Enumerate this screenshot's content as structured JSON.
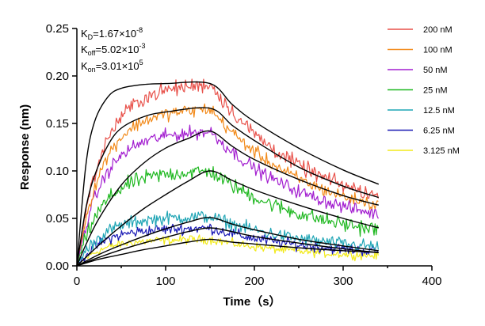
{
  "chart_data": {
    "type": "line",
    "title": "",
    "xlabel": "Time（s）",
    "ylabel": "Response (nm)",
    "xlim": [
      0,
      400
    ],
    "ylim": [
      0,
      0.25
    ],
    "xticks": [
      "0",
      "100",
      "200",
      "300",
      "400"
    ],
    "yticks": [
      "0.00",
      "0.05",
      "0.10",
      "0.15",
      "0.20",
      "0.25"
    ],
    "grid": false,
    "legend_position": "right",
    "association_end_s": 150,
    "end_time_s": 340,
    "kinetics": {
      "kd_prefix": "K",
      "kd_sub": "D",
      "kd_value": "=1.67×10",
      "kd_exp": "-8",
      "koff_prefix": "K",
      "koff_sub": "off",
      "koff_value": "=5.02×10",
      "koff_exp": "-3",
      "kon_prefix": "K",
      "kon_sub": "on",
      "kon_value": "=3.01×10",
      "kon_exp": "5"
    },
    "fit_color": "#000000",
    "series": [
      {
        "name": "200 nM",
        "color": "#e8514a",
        "plateau": 0.192,
        "noise": 0.007,
        "fit": [
          [
            0,
            0
          ],
          [
            10,
            0.105
          ],
          [
            20,
            0.152
          ],
          [
            35,
            0.178
          ],
          [
            50,
            0.187
          ],
          [
            75,
            0.191
          ],
          [
            100,
            0.192
          ],
          [
            150,
            0.192
          ],
          [
            175,
            0.17
          ],
          [
            200,
            0.152
          ],
          [
            250,
            0.124
          ],
          [
            300,
            0.101
          ],
          [
            340,
            0.086
          ]
        ]
      },
      {
        "name": "100 nM",
        "color": "#f28a1a",
        "plateau": 0.166,
        "noise": 0.006,
        "fit": [
          [
            0,
            0
          ],
          [
            10,
            0.06
          ],
          [
            20,
            0.095
          ],
          [
            35,
            0.127
          ],
          [
            50,
            0.145
          ],
          [
            75,
            0.157
          ],
          [
            100,
            0.162
          ],
          [
            150,
            0.166
          ],
          [
            175,
            0.148
          ],
          [
            200,
            0.132
          ],
          [
            250,
            0.104
          ],
          [
            300,
            0.084
          ],
          [
            340,
            0.072
          ]
        ]
      },
      {
        "name": "50 nM",
        "color": "#a31fd0",
        "plateau": 0.142,
        "noise": 0.006,
        "fit": [
          [
            0,
            0
          ],
          [
            10,
            0.022
          ],
          [
            25,
            0.05
          ],
          [
            50,
            0.085
          ],
          [
            75,
            0.108
          ],
          [
            100,
            0.124
          ],
          [
            125,
            0.134
          ],
          [
            150,
            0.142
          ],
          [
            175,
            0.126
          ],
          [
            200,
            0.112
          ],
          [
            250,
            0.091
          ],
          [
            300,
            0.074
          ],
          [
            340,
            0.064
          ]
        ]
      },
      {
        "name": "25 nM",
        "color": "#1fb820",
        "plateau": 0.1,
        "noise": 0.007,
        "fit": [
          [
            0,
            0
          ],
          [
            25,
            0.022
          ],
          [
            50,
            0.042
          ],
          [
            75,
            0.06
          ],
          [
            100,
            0.075
          ],
          [
            125,
            0.089
          ],
          [
            150,
            0.1
          ],
          [
            175,
            0.09
          ],
          [
            200,
            0.08
          ],
          [
            250,
            0.064
          ],
          [
            300,
            0.05
          ],
          [
            340,
            0.04
          ]
        ]
      },
      {
        "name": "12.5 nM",
        "color": "#1fa5b5",
        "plateau": 0.052,
        "noise": 0.006,
        "fit": [
          [
            0,
            0
          ],
          [
            25,
            0.012
          ],
          [
            50,
            0.022
          ],
          [
            75,
            0.031
          ],
          [
            100,
            0.039
          ],
          [
            125,
            0.046
          ],
          [
            150,
            0.051
          ],
          [
            175,
            0.044
          ],
          [
            200,
            0.038
          ],
          [
            250,
            0.028
          ],
          [
            300,
            0.021
          ],
          [
            340,
            0.016
          ]
        ]
      },
      {
        "name": "6.25 nM",
        "color": "#1a1ab5",
        "plateau": 0.04,
        "noise": 0.005,
        "fit": [
          [
            0,
            0
          ],
          [
            25,
            0.009
          ],
          [
            50,
            0.017
          ],
          [
            75,
            0.024
          ],
          [
            100,
            0.03
          ],
          [
            125,
            0.036
          ],
          [
            150,
            0.04
          ],
          [
            175,
            0.036
          ],
          [
            200,
            0.031
          ],
          [
            250,
            0.024
          ],
          [
            300,
            0.018
          ],
          [
            340,
            0.014
          ]
        ]
      },
      {
        "name": "3.125 nM",
        "color": "#f2ea1a",
        "plateau": 0.028,
        "noise": 0.004,
        "fit": [
          [
            0,
            0
          ],
          [
            25,
            0.007
          ],
          [
            50,
            0.012
          ],
          [
            75,
            0.017
          ],
          [
            100,
            0.021
          ],
          [
            125,
            0.025
          ],
          [
            150,
            0.028
          ],
          [
            175,
            0.025
          ],
          [
            200,
            0.023
          ],
          [
            250,
            0.019
          ],
          [
            300,
            0.016
          ],
          [
            340,
            0.014
          ]
        ]
      }
    ]
  }
}
